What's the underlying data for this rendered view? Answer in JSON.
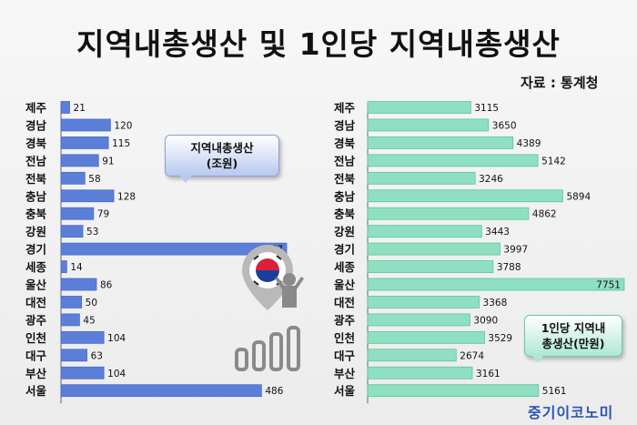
{
  "title": "지역내총생산 및 1인당 지역내총생산",
  "source": "자료 : 통계청",
  "brand": "중기이코노미",
  "colors": {
    "left_bar": "#5b7fd9",
    "right_bar": "#8fe0c2",
    "right_bar_edge": "#5cc49c"
  },
  "chart_data": [
    {
      "type": "bar",
      "orientation": "horizontal",
      "title": "지역내총생산\n(조원)",
      "categories": [
        "제주",
        "경남",
        "경북",
        "전남",
        "전북",
        "충남",
        "충북",
        "강원",
        "경기",
        "세종",
        "울산",
        "대전",
        "광주",
        "인천",
        "대구",
        "부산",
        "서울"
      ],
      "values": [
        21,
        120,
        115,
        91,
        58,
        128,
        79,
        53,
        547,
        14,
        86,
        50,
        45,
        104,
        63,
        104,
        486
      ],
      "xlim": [
        0,
        547
      ]
    },
    {
      "type": "bar",
      "orientation": "horizontal",
      "title": "1인당 지역내\n총생산(만원)",
      "categories": [
        "제주",
        "경남",
        "경북",
        "전남",
        "전북",
        "충남",
        "충북",
        "강원",
        "경기",
        "세종",
        "울산",
        "대전",
        "광주",
        "인천",
        "대구",
        "부산",
        "서울"
      ],
      "values": [
        3115,
        3650,
        4389,
        5142,
        3246,
        5894,
        4862,
        3443,
        3997,
        3788,
        7751,
        3368,
        3090,
        3529,
        2674,
        3161,
        5161
      ],
      "xlim": [
        0,
        7751
      ]
    }
  ]
}
